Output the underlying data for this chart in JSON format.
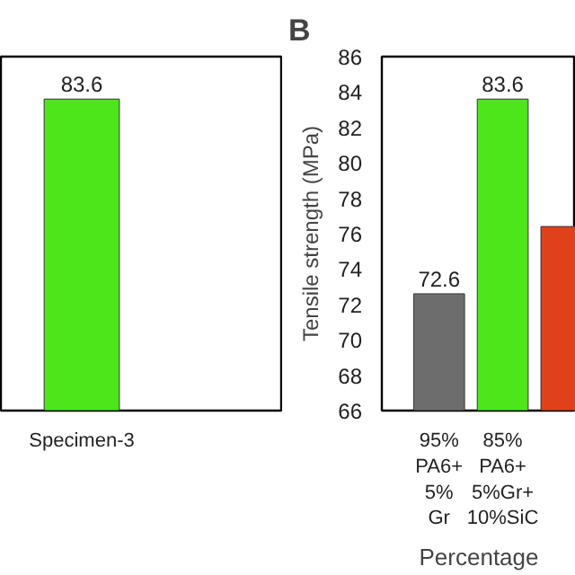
{
  "chart_data": [
    {
      "type": "bar",
      "categories": [
        "Specimen-3"
      ],
      "values": [
        83.6
      ],
      "colors": [
        "#4ce61a"
      ],
      "ylim": [
        66,
        86
      ],
      "data_labels": true,
      "tick_labels": "x"
    },
    {
      "type": "bar",
      "title": "B",
      "categories": [
        "95%\nPA6+\n5%\nGr",
        "85%\nPA6+\n5%Gr+\n10%SiC",
        null
      ],
      "values": [
        72.6,
        83.6,
        76.4
      ],
      "colors": [
        "#6d6d6d",
        "#4ce61a",
        "#e0401a"
      ],
      "value_labels": [
        "72.6",
        "83.6",
        null
      ],
      "ylim": [
        66,
        86
      ],
      "yticks": [
        66,
        68,
        70,
        72,
        74,
        76,
        78,
        80,
        82,
        84,
        86
      ],
      "ylabel": "Tensile strength (MPa)",
      "xlabel": "Percentage"
    }
  ]
}
